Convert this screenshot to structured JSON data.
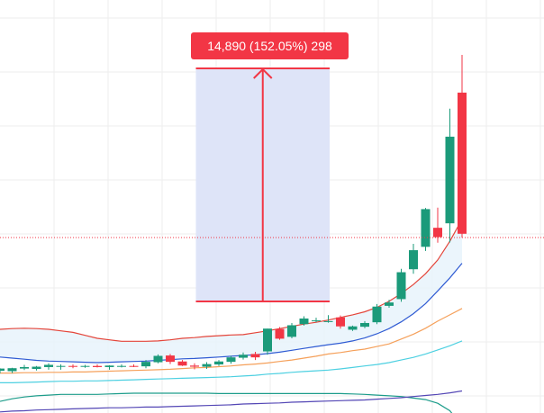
{
  "measure": {
    "label": "14,890 (152.05%) 298"
  },
  "colors": {
    "up": "#26a69a",
    "down": "#ef5350",
    "up_body": "#1b9a7a",
    "down_body": "#f23645",
    "measure_fill": "#dce3f8",
    "measure_line": "#f23645",
    "price_line": "#f23645",
    "grid": "#eeeeee",
    "ma_red": "#e4453a",
    "ma_blue": "#2f5bd3",
    "ma_orange": "#f5a05a",
    "ma_cyan": "#4dd0e1",
    "ma_teal": "#1c9c8a",
    "ma_purple": "#5346b5",
    "band_fill": "#e6f2fb"
  },
  "chart_data": {
    "type": "candlestick",
    "title": "",
    "xlabel": "",
    "ylabel": "",
    "grid": true,
    "ylim": [
      0,
      100
    ],
    "measure": {
      "from_bar": 16,
      "to_bar": 27,
      "change": "14,890",
      "percent": "152.05%",
      "bars": 298
    },
    "last_price_line": 47,
    "candles": [
      {
        "o": 11.3,
        "h": 12.0,
        "l": 10.6,
        "c": 11.9
      },
      {
        "o": 11.2,
        "h": 12.1,
        "l": 10.7,
        "c": 12.0
      },
      {
        "o": 11.9,
        "h": 12.9,
        "l": 11.5,
        "c": 12.3
      },
      {
        "o": 11.8,
        "h": 12.6,
        "l": 11.4,
        "c": 12.4
      },
      {
        "o": 12.3,
        "h": 13.3,
        "l": 11.6,
        "c": 12.9
      },
      {
        "o": 12.5,
        "h": 13.0,
        "l": 11.6,
        "c": 12.6
      },
      {
        "o": 12.6,
        "h": 13.0,
        "l": 12.0,
        "c": 12.4
      },
      {
        "o": 12.4,
        "h": 12.9,
        "l": 12.1,
        "c": 12.6
      },
      {
        "o": 12.6,
        "h": 13.0,
        "l": 12.2,
        "c": 12.3
      },
      {
        "o": 12.3,
        "h": 12.8,
        "l": 11.6,
        "c": 12.7
      },
      {
        "o": 12.6,
        "h": 13.0,
        "l": 12.2,
        "c": 12.6
      },
      {
        "o": 12.6,
        "h": 13.0,
        "l": 12.3,
        "c": 12.4
      },
      {
        "o": 12.5,
        "h": 14.2,
        "l": 12.0,
        "c": 13.7
      },
      {
        "o": 13.6,
        "h": 15.7,
        "l": 13.3,
        "c": 15.3
      },
      {
        "o": 15.4,
        "h": 15.8,
        "l": 13.1,
        "c": 13.7
      },
      {
        "o": 13.8,
        "h": 14.2,
        "l": 12.6,
        "c": 12.7
      },
      {
        "o": 12.7,
        "h": 13.3,
        "l": 11.7,
        "c": 12.4
      },
      {
        "o": 12.4,
        "h": 13.6,
        "l": 11.8,
        "c": 13.1
      },
      {
        "o": 13.0,
        "h": 14.2,
        "l": 12.6,
        "c": 13.8
      },
      {
        "o": 13.7,
        "h": 15.3,
        "l": 13.2,
        "c": 14.9
      },
      {
        "o": 14.8,
        "h": 16.2,
        "l": 14.3,
        "c": 15.6
      },
      {
        "o": 15.8,
        "h": 16.4,
        "l": 14.2,
        "c": 14.9
      },
      {
        "o": 16.5,
        "h": 22.6,
        "l": 15.6,
        "c": 22.6
      },
      {
        "o": 22.5,
        "h": 23.0,
        "l": 19.6,
        "c": 19.9
      },
      {
        "o": 20.4,
        "h": 24.1,
        "l": 20.0,
        "c": 23.5
      },
      {
        "o": 23.8,
        "h": 25.9,
        "l": 23.4,
        "c": 25.3
      },
      {
        "o": 24.6,
        "h": 25.5,
        "l": 24.3,
        "c": 24.8
      },
      {
        "o": 24.5,
        "h": 26.2,
        "l": 24.2,
        "c": 24.6
      },
      {
        "o": 25.6,
        "h": 26.1,
        "l": 22.6,
        "c": 23.2
      },
      {
        "o": 22.3,
        "h": 23.4,
        "l": 22.0,
        "c": 23.2
      },
      {
        "o": 23.1,
        "h": 24.6,
        "l": 22.7,
        "c": 24.1
      },
      {
        "o": 24.3,
        "h": 29.2,
        "l": 23.8,
        "c": 28.5
      },
      {
        "o": 28.7,
        "h": 30.3,
        "l": 28.2,
        "c": 29.6
      },
      {
        "o": 30.5,
        "h": 38.6,
        "l": 29.8,
        "c": 37.7
      },
      {
        "o": 38.5,
        "h": 45.3,
        "l": 37.3,
        "c": 43.6
      },
      {
        "o": 44.5,
        "h": 54.9,
        "l": 43.4,
        "c": 54.6
      },
      {
        "o": 49.6,
        "h": 55.0,
        "l": 45.6,
        "c": 47.1
      },
      {
        "o": 50.8,
        "h": 81.5,
        "l": 45.7,
        "c": 74.0
      },
      {
        "o": 85.8,
        "h": 95.9,
        "l": 47.0,
        "c": 48.0
      }
    ],
    "series": [
      {
        "key": "ma_red",
        "values": [
          22.4,
          22.6,
          22.7,
          22.6,
          22.4,
          22.0,
          21.6,
          20.8,
          20.0,
          19.6,
          19.2,
          19.2,
          19.2,
          19.3,
          19.6,
          20.0,
          20.2,
          20.5,
          20.7,
          20.9,
          21.0,
          21.5,
          22.0,
          22.6,
          23.2,
          23.8,
          24.3,
          24.9,
          25.6,
          26.3,
          27.1,
          28.3,
          29.9,
          32.0,
          34.4,
          37.3,
          41.0,
          46.0,
          51.9
        ]
      },
      {
        "key": "ma_blue",
        "values": [
          15.0,
          14.7,
          14.4,
          14.1,
          13.9,
          13.8,
          13.7,
          13.6,
          13.5,
          13.6,
          13.7,
          13.8,
          13.9,
          14.1,
          14.3,
          14.5,
          14.6,
          14.8,
          15.0,
          15.2,
          15.4,
          15.6,
          15.9,
          16.3,
          16.8,
          17.3,
          17.8,
          18.3,
          18.7,
          19.3,
          20.1,
          21.2,
          22.6,
          24.4,
          26.6,
          29.3,
          32.7,
          36.2,
          40.1
        ]
      },
      {
        "key": "ma_orange",
        "values": [
          10.7,
          10.7,
          10.8,
          10.8,
          10.9,
          10.9,
          11.0,
          11.0,
          11.1,
          11.2,
          11.3,
          11.4,
          11.5,
          11.6,
          11.7,
          11.9,
          12.1,
          12.2,
          12.4,
          12.6,
          12.9,
          13.1,
          13.4,
          13.8,
          14.2,
          14.7,
          15.2,
          15.8,
          16.2,
          16.7,
          17.1,
          17.8,
          18.5,
          19.8,
          21.1,
          22.7,
          24.6,
          26.3,
          28.0
        ]
      },
      {
        "key": "ma_cyan",
        "values": [
          8.1,
          8.1,
          8.2,
          8.3,
          8.4,
          8.5,
          8.5,
          8.6,
          8.6,
          8.7,
          8.8,
          8.9,
          9.0,
          9.1,
          9.2,
          9.3,
          9.4,
          9.5,
          9.6,
          9.7,
          9.9,
          10.1,
          10.4,
          10.6,
          10.9,
          11.1,
          11.3,
          11.5,
          11.8,
          12.2,
          12.6,
          13.0,
          13.5,
          14.2,
          14.9,
          15.8,
          16.9,
          18.0,
          19.3
        ]
      },
      {
        "key": "ma_teal",
        "values": [
          3.1,
          3.8,
          4.3,
          4.6,
          4.8,
          5.0,
          5.0,
          5.0,
          5.0,
          5.1,
          5.2,
          5.3,
          5.3,
          5.3,
          5.3,
          5.3,
          5.3,
          5.3,
          5.2,
          5.2,
          5.2,
          5.2,
          5.2,
          5.2,
          5.2,
          5.2,
          5.2,
          5.2,
          5.2,
          5.1,
          5.0,
          4.8,
          4.6,
          4.4,
          4.0,
          3.6,
          2.6,
          0.6,
          -3.5
        ]
      },
      {
        "key": "ma_purple",
        "values": [
          0.3,
          0.5,
          0.6,
          0.8,
          0.9,
          1.0,
          1.1,
          1.2,
          1.3,
          1.4,
          1.4,
          1.5,
          1.6,
          1.6,
          1.7,
          1.8,
          1.9,
          2.0,
          2.1,
          2.2,
          2.4,
          2.5,
          2.6,
          2.7,
          2.9,
          3.0,
          3.1,
          3.2,
          3.3,
          3.4,
          3.5,
          3.7,
          3.9,
          4.1,
          4.4,
          4.7,
          5.0,
          5.4,
          5.9
        ]
      }
    ]
  }
}
